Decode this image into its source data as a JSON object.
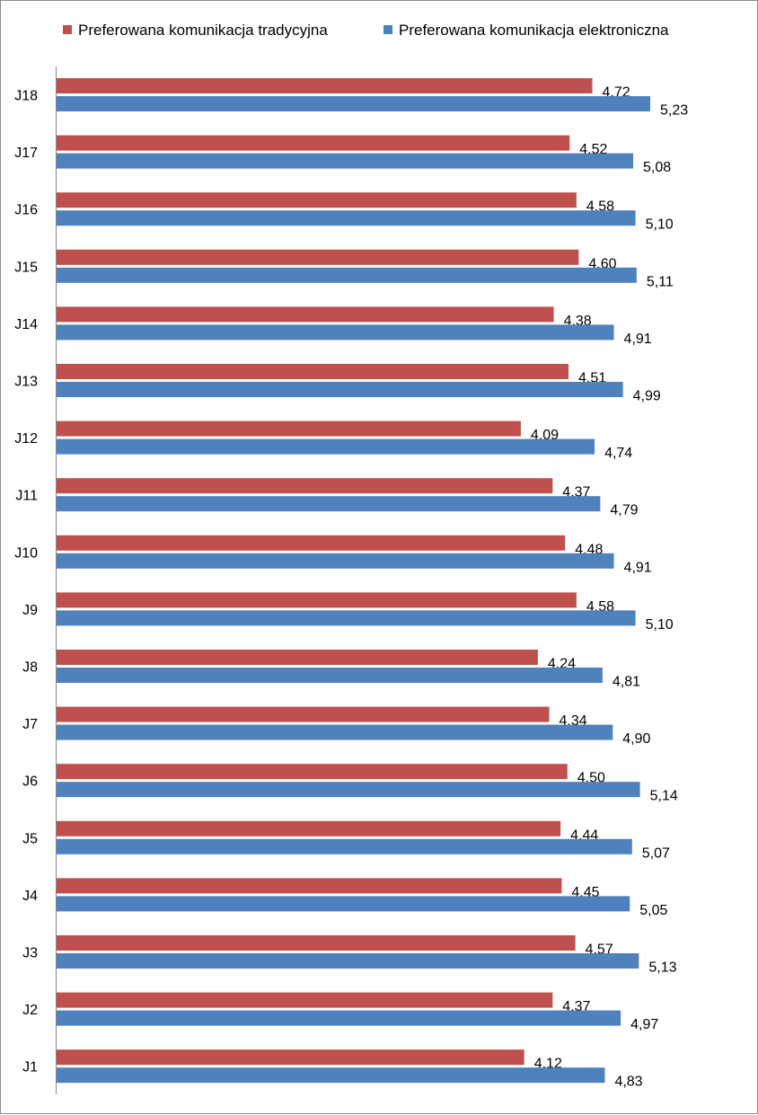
{
  "chart_data": {
    "type": "bar",
    "orientation": "horizontal",
    "categories": [
      "J18",
      "J17",
      "J16",
      "J15",
      "J14",
      "J13",
      "J12",
      "J11",
      "J10",
      "J9",
      "J8",
      "J7",
      "J6",
      "J5",
      "J4",
      "J3",
      "J2",
      "J1"
    ],
    "series": [
      {
        "name": "Preferowana komunikacja tradycyjna",
        "color": "#c0504d",
        "values": [
          4.72,
          4.52,
          4.58,
          4.6,
          4.38,
          4.51,
          4.09,
          4.37,
          4.48,
          4.58,
          4.24,
          4.34,
          4.5,
          4.44,
          4.45,
          4.57,
          4.37,
          4.12
        ],
        "labels": [
          "4,72",
          "4,52",
          "4,58",
          "4,60",
          "4,38",
          "4,51",
          "4,09",
          "4,37",
          "4,48",
          "4,58",
          "4,24",
          "4,34",
          "4,50",
          "4,44",
          "4,45",
          "4,57",
          "4,37",
          "4,12"
        ]
      },
      {
        "name": "Preferowana komunikacja elektroniczna",
        "color": "#4f81bd",
        "values": [
          5.23,
          5.08,
          5.1,
          5.11,
          4.91,
          4.99,
          4.74,
          4.79,
          4.91,
          5.1,
          4.81,
          4.9,
          5.14,
          5.07,
          5.05,
          5.13,
          4.97,
          4.83
        ],
        "labels": [
          "5,23",
          "5,08",
          "5,10",
          "5,11",
          "4,91",
          "4,99",
          "4,74",
          "4,79",
          "4,91",
          "5,10",
          "4,81",
          "4,90",
          "5,14",
          "5,07",
          "5,05",
          "5,13",
          "4,97",
          "4,83"
        ]
      }
    ],
    "xlim": [
      0,
      6.2
    ],
    "grid": false,
    "legend_position": "top"
  }
}
